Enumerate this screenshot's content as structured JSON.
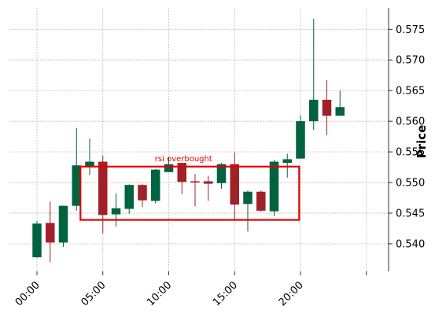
{
  "chart_data": {
    "type": "candlestick",
    "title": "",
    "xlabel": "",
    "ylabel": "Price",
    "x_tick_labels": [
      "00:00",
      "05:00",
      "10:00",
      "15:00",
      "20:00",
      ""
    ],
    "y_ticks": [
      0.54,
      0.545,
      0.55,
      0.555,
      0.56,
      0.565,
      0.57,
      0.575
    ],
    "y_tick_labels": [
      "0.540",
      "0.545",
      "0.550",
      "0.555",
      "0.560",
      "0.565",
      "0.570",
      "0.575"
    ],
    "ylim": [
      0.5355,
      0.5785
    ],
    "grid": true,
    "y_axis_side": "right",
    "colors": {
      "up": "#006340",
      "down": "#A02128",
      "annotation": "#e00000"
    },
    "candles": [
      {
        "hour": 0,
        "open": 0.5378,
        "high": 0.5437,
        "low": 0.5377,
        "close": 0.5433
      },
      {
        "hour": 1,
        "open": 0.5434,
        "high": 0.5469,
        "low": 0.537,
        "close": 0.5402
      },
      {
        "hour": 2,
        "open": 0.5402,
        "high": 0.5462,
        "low": 0.5395,
        "close": 0.5462
      },
      {
        "hour": 3,
        "open": 0.5462,
        "high": 0.5589,
        "low": 0.5454,
        "close": 0.5528
      },
      {
        "hour": 4,
        "open": 0.5527,
        "high": 0.5572,
        "low": 0.5512,
        "close": 0.5534
      },
      {
        "hour": 5,
        "open": 0.5534,
        "high": 0.5544,
        "low": 0.5417,
        "close": 0.5447
      },
      {
        "hour": 6,
        "open": 0.5448,
        "high": 0.5482,
        "low": 0.5428,
        "close": 0.5458
      },
      {
        "hour": 7,
        "open": 0.5457,
        "high": 0.5497,
        "low": 0.5449,
        "close": 0.5496
      },
      {
        "hour": 8,
        "open": 0.5496,
        "high": 0.5498,
        "low": 0.546,
        "close": 0.5471
      },
      {
        "hour": 9,
        "open": 0.547,
        "high": 0.5522,
        "low": 0.5466,
        "close": 0.5521
      },
      {
        "hour": 10,
        "open": 0.5517,
        "high": 0.5542,
        "low": 0.5517,
        "close": 0.553
      },
      {
        "hour": 11,
        "open": 0.5532,
        "high": 0.5532,
        "low": 0.5481,
        "close": 0.5501
      },
      {
        "hour": 12,
        "open": 0.5502,
        "high": 0.5514,
        "low": 0.5461,
        "close": 0.55
      },
      {
        "hour": 13,
        "open": 0.5502,
        "high": 0.5511,
        "low": 0.547,
        "close": 0.5498
      },
      {
        "hour": 14,
        "open": 0.5499,
        "high": 0.5532,
        "low": 0.549,
        "close": 0.553
      },
      {
        "hour": 15,
        "open": 0.553,
        "high": 0.5549,
        "low": 0.5438,
        "close": 0.5464
      },
      {
        "hour": 16,
        "open": 0.5465,
        "high": 0.5487,
        "low": 0.542,
        "close": 0.5485
      },
      {
        "hour": 17,
        "open": 0.5485,
        "high": 0.5487,
        "low": 0.5452,
        "close": 0.5454
      },
      {
        "hour": 18,
        "open": 0.5453,
        "high": 0.5537,
        "low": 0.5445,
        "close": 0.5534
      },
      {
        "hour": 19,
        "open": 0.5532,
        "high": 0.5547,
        "low": 0.5508,
        "close": 0.5538
      },
      {
        "hour": 20,
        "open": 0.5539,
        "high": 0.561,
        "low": 0.5539,
        "close": 0.56
      },
      {
        "hour": 21,
        "open": 0.56,
        "high": 0.5767,
        "low": 0.5586,
        "close": 0.5635
      },
      {
        "hour": 22,
        "open": 0.5635,
        "high": 0.5667,
        "low": 0.5577,
        "close": 0.5609
      },
      {
        "hour": 23,
        "open": 0.5609,
        "high": 0.565,
        "low": 0.5609,
        "close": 0.5623
      }
    ],
    "annotations": [
      {
        "text": "rsi overbought",
        "x_start": 3.3,
        "x_end": 19.9,
        "y_low": 0.5439,
        "y_high": 0.5526
      }
    ]
  }
}
